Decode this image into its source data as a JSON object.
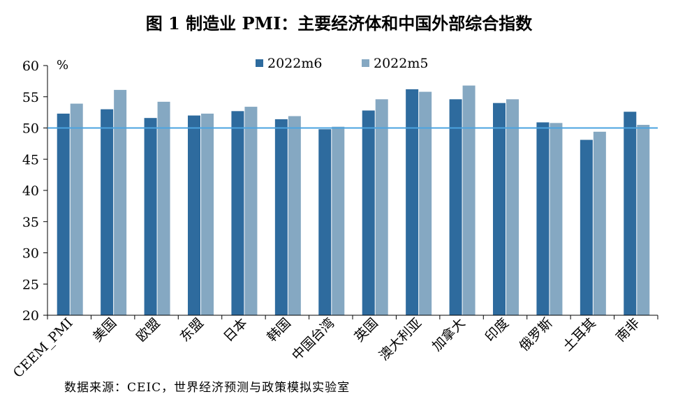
{
  "title": "图 1 制造业 PMI：主要经济体和中国外部综合指数",
  "source": "数据来源：CEIC，世界经济预测与政策模拟实验室",
  "chart_data": {
    "type": "bar",
    "unit": "%",
    "categories": [
      "CEEM_PMI",
      "美国",
      "欧盟",
      "东盟",
      "日本",
      "韩国",
      "中国台湾",
      "英国",
      "澳大利亚",
      "加拿大",
      "印度",
      "俄罗斯",
      "土耳其",
      "南非"
    ],
    "series": [
      {
        "name": "2022m6",
        "color": "#2e6b9e",
        "values": [
          52.3,
          53.0,
          51.6,
          52.0,
          52.7,
          51.4,
          49.8,
          52.8,
          56.2,
          54.6,
          54.0,
          50.9,
          48.1,
          52.6
        ]
      },
      {
        "name": "2022m5",
        "color": "#85a8c2",
        "values": [
          53.9,
          56.1,
          54.2,
          52.3,
          53.4,
          51.9,
          50.2,
          54.6,
          55.8,
          56.8,
          54.6,
          50.8,
          49.4,
          50.5
        ]
      }
    ],
    "reference_line": {
      "value": 50,
      "color": "#4aa3e0"
    },
    "yticks": [
      20,
      25,
      30,
      35,
      40,
      45,
      50,
      55,
      60
    ],
    "ylim": [
      20,
      60
    ],
    "legend_position": "top-center",
    "grid": false
  }
}
